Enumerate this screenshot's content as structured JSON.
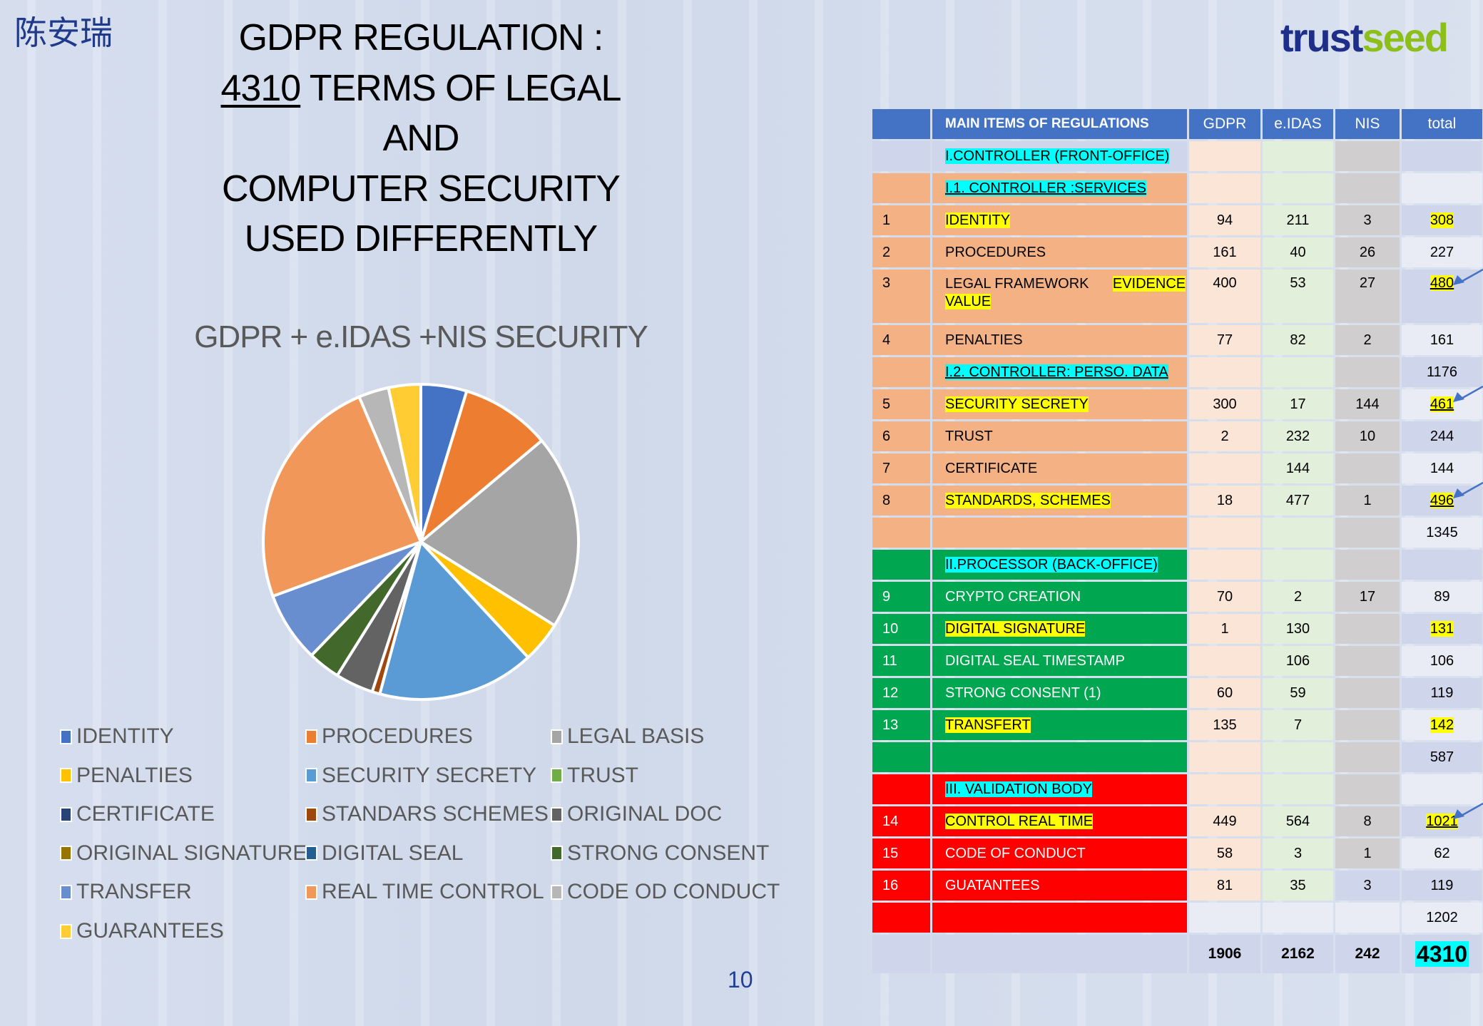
{
  "author_name": "陈安瑞",
  "logo": {
    "part1": "trust",
    "part2": "seed"
  },
  "title": {
    "line1": "GDPR REGULATION :",
    "line2_num": "4310",
    "line2_rest": " TERMS OF LEGAL",
    "line3": "AND",
    "line4": "COMPUTER SECURITY",
    "line5": "USED  DIFFERENTLY"
  },
  "page_number": "10",
  "chart_data": {
    "type": "pie",
    "title": "GDPR + e.IDAS +NIS SECURITY",
    "unit": "percent of total (estimated from slice angles)",
    "legend_position": "bottom",
    "categories": [
      "IDENTITY",
      "PROCEDURES",
      "LEGAL BASIS",
      "PENALTIES",
      "SECURITY SECRETY",
      "TRUST",
      "CERTIFICATE",
      "STANDARS SCHEMES",
      "ORIGINAL DOC",
      "ORIGINAL SIGNATURE",
      "DIGITAL SEAL",
      "STRONG CONSENT",
      "TRANSFER",
      "REAL TIME CONTROL",
      "CODE OD CONDUCT",
      "GUARANTEES"
    ],
    "values": [
      4.7,
      9.2,
      20.0,
      4.2,
      16.1,
      0,
      0,
      0.8,
      3.9,
      0,
      0,
      3.3,
      7.2,
      24.2,
      3.1,
      3.3
    ],
    "colors": [
      "#4472c4",
      "#ed7d31",
      "#a5a5a5",
      "#ffc000",
      "#5b9bd5",
      "#70ad47",
      "#264478",
      "#9e480e",
      "#636363",
      "#997300",
      "#255e91",
      "#43682b",
      "#698ed0",
      "#f1975a",
      "#b7b7b7",
      "#ffcd33"
    ]
  },
  "table": {
    "headers": [
      "",
      "MAIN ITEMS OF REGULATIONS",
      "GDPR",
      "e.IDAS",
      "NIS",
      "total"
    ],
    "section_colors": {
      "head": "#cfd5ea",
      "controller": "#f4b183",
      "processor": "#00a650",
      "validation": "#ff0000",
      "totals": "#cfd5ea"
    },
    "rows": [
      {
        "sec": "head",
        "num": "",
        "label": "I.CONTROLLER (FRONT-OFFICE)",
        "hl": "c",
        "gdpr": "",
        "eidas": "",
        "nis": "",
        "total": ""
      },
      {
        "sec": "controller",
        "num": "",
        "label": "I.1. CONTROLLER :SERVICES",
        "hl": "c",
        "ul": true,
        "gdpr": "",
        "eidas": "",
        "nis": "",
        "total": ""
      },
      {
        "sec": "controller",
        "num": "1",
        "label": "IDENTITY",
        "hl": "y",
        "gdpr": "94",
        "eidas": "211",
        "nis": "3",
        "total": "308",
        "thl": true
      },
      {
        "sec": "controller",
        "num": "2",
        "label": "PROCEDURES",
        "gdpr": "161",
        "eidas": "40",
        "nis": "26",
        "total": "227"
      },
      {
        "sec": "controller",
        "num": "3",
        "label": "LEGAL FRAMEWORK",
        "label2": "EVIDENCE VALUE",
        "gdpr": "400",
        "eidas": "53",
        "nis": "27",
        "total": "480",
        "thl": true,
        "tul": true,
        "arrow": true,
        "tall": true
      },
      {
        "sec": "controller",
        "num": "4",
        "label": "PENALTIES",
        "gdpr": "77",
        "eidas": "82",
        "nis": "2",
        "total": "161"
      },
      {
        "sec": "controller",
        "num": "",
        "label": "I.2. CONTROLLER: PERSO. DATA",
        "hl": "c",
        "ul": true,
        "gdpr": "",
        "eidas": "",
        "nis": "",
        "total": "1176"
      },
      {
        "sec": "controller",
        "num": "5",
        "label": "SECURITY SECRETY",
        "hl": "y",
        "gdpr": "300",
        "eidas": "17",
        "nis": "144",
        "total": "461",
        "thl": true,
        "tul": true,
        "arrow": true
      },
      {
        "sec": "controller",
        "num": "6",
        "label": "TRUST",
        "gdpr": "2",
        "eidas": "232",
        "nis": "10",
        "total": "244"
      },
      {
        "sec": "controller",
        "num": "7",
        "label": "CERTIFICATE",
        "gdpr": "",
        "eidas": "144",
        "nis": "",
        "total": "144"
      },
      {
        "sec": "controller",
        "num": "8",
        "label": "STANDARDS, SCHEMES",
        "hl": "y",
        "gdpr": "18",
        "eidas": "477",
        "nis": "1",
        "total": "496",
        "thl": true,
        "tul": true,
        "arrow": true
      },
      {
        "sec": "controller",
        "num": "",
        "label": "",
        "gdpr": "",
        "eidas": "",
        "nis": "",
        "total": "1345"
      },
      {
        "sec": "processor",
        "num": "",
        "label": "II.PROCESSOR (BACK-OFFICE)",
        "hl": "c",
        "gdpr": "",
        "eidas": "",
        "nis": "",
        "total": ""
      },
      {
        "sec": "processor",
        "num": "9",
        "label": "CRYPTO CREATION",
        "gdpr": "70",
        "eidas": "2",
        "nis": "17",
        "total": "89"
      },
      {
        "sec": "processor",
        "num": "10",
        "label": "DIGITAL SIGNATURE",
        "hl": "y",
        "gdpr": "1",
        "eidas": "130",
        "nis": "",
        "total": "131",
        "thl": true
      },
      {
        "sec": "processor",
        "num": "11",
        "label": "DIGITAL SEAL TIMESTAMP",
        "gdpr": "",
        "eidas": "106",
        "nis": "",
        "total": "106"
      },
      {
        "sec": "processor",
        "num": "12",
        "label": "STRONG CONSENT (1)",
        "gdpr": "60",
        "eidas": "59",
        "nis": "",
        "total": "119"
      },
      {
        "sec": "processor",
        "num": "13",
        "label": "TRANSFERT",
        "hl": "y",
        "gdpr": "135",
        "eidas": "7",
        "nis": "",
        "total": "142",
        "thl": true
      },
      {
        "sec": "processor",
        "num": "",
        "label": "",
        "gdpr": "",
        "eidas": "",
        "nis": "",
        "total": "587"
      },
      {
        "sec": "validation",
        "num": "",
        "label": "III. VALIDATION BODY",
        "hl": "c",
        "gdpr": "",
        "eidas": "",
        "nis": "",
        "total": ""
      },
      {
        "sec": "validation",
        "num": "14",
        "label": "CONTROL REAL TIME",
        "hl": "y",
        "gdpr": "449",
        "eidas": "564",
        "nis": "8",
        "total": "1021",
        "thl": true,
        "tul": true,
        "arrow": true
      },
      {
        "sec": "validation",
        "num": "15",
        "label": "CODE OF CONDUCT",
        "gdpr": "58",
        "eidas": "3",
        "nis": "1",
        "total": "62"
      },
      {
        "sec": "validation",
        "num": "16",
        "label": "GUATANTEES",
        "gdpr": "81",
        "eidas": "35",
        "nis": "3",
        "total": "119"
      },
      {
        "sec": "validation",
        "num": "",
        "label": "",
        "gdpr": "",
        "eidas": "",
        "nis": "",
        "total": "1202",
        "plain": true
      },
      {
        "sec": "totals",
        "num": "",
        "label": "",
        "gdpr": "1906",
        "eidas": "2162",
        "nis": "242",
        "total": "4310",
        "grand": true
      }
    ]
  }
}
